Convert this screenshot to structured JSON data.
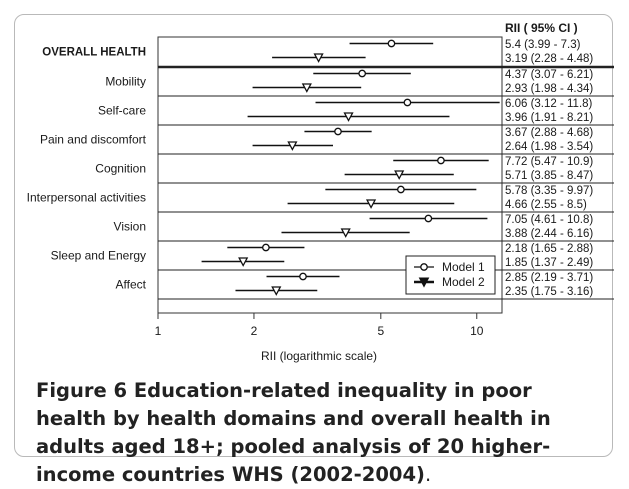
{
  "chart_data": {
    "type": "forest",
    "title": "",
    "xlabel": "RII (logarithmic scale)",
    "ylabel": "",
    "x_scale": "log",
    "xlim": [
      1,
      12
    ],
    "xticks": [
      1,
      2,
      5,
      10
    ],
    "xtick_labels": [
      "1",
      "2",
      "5",
      "10"
    ],
    "ci_header": "RII  ( 95% CI )",
    "legend": {
      "placement": "bottom-right",
      "entries": [
        "Model 1",
        "Model 2"
      ]
    },
    "categories": [
      "OVERALL HEALTH",
      "Mobility",
      "Self-care",
      "Pain and discomfort",
      "Cognition",
      "Interpersonal activities",
      "Vision",
      "Sleep and Energy",
      "Affect"
    ],
    "series": [
      {
        "name": "Model 1",
        "marker": "circle",
        "points": [
          {
            "category": "OVERALL HEALTH",
            "rii": 5.4,
            "low": 3.99,
            "high": 7.3,
            "label": "5.4 (3.99 -  7.3)"
          },
          {
            "category": "Mobility",
            "rii": 4.37,
            "low": 3.07,
            "high": 6.21,
            "label": "4.37 (3.07 -  6.21)"
          },
          {
            "category": "Self-care",
            "rii": 6.06,
            "low": 3.12,
            "high": 11.8,
            "label": "6.06 (3.12 -  11.8)"
          },
          {
            "category": "Pain and discomfort",
            "rii": 3.67,
            "low": 2.88,
            "high": 4.68,
            "label": "3.67 (2.88 -  4.68)"
          },
          {
            "category": "Cognition",
            "rii": 7.72,
            "low": 5.47,
            "high": 10.9,
            "label": "7.72 (5.47 -  10.9)"
          },
          {
            "category": "Interpersonal activities",
            "rii": 5.78,
            "low": 3.35,
            "high": 9.97,
            "label": "5.78 (3.35 -  9.97)"
          },
          {
            "category": "Vision",
            "rii": 7.05,
            "low": 4.61,
            "high": 10.8,
            "label": "7.05 (4.61 -  10.8)"
          },
          {
            "category": "Sleep and Energy",
            "rii": 2.18,
            "low": 1.65,
            "high": 2.88,
            "label": "2.18 (1.65 -  2.88)"
          },
          {
            "category": "Affect",
            "rii": 2.85,
            "low": 2.19,
            "high": 3.71,
            "label": "2.85 (2.19 -  3.71)"
          }
        ]
      },
      {
        "name": "Model 2",
        "marker": "triangle-down",
        "points": [
          {
            "category": "OVERALL HEALTH",
            "rii": 3.19,
            "low": 2.28,
            "high": 4.48,
            "label": "3.19 (2.28 -  4.48)"
          },
          {
            "category": "Mobility",
            "rii": 2.93,
            "low": 1.98,
            "high": 4.34,
            "label": "2.93 (1.98 -  4.34)"
          },
          {
            "category": "Self-care",
            "rii": 3.96,
            "low": 1.91,
            "high": 8.21,
            "label": "3.96 (1.91 -  8.21)"
          },
          {
            "category": "Pain and discomfort",
            "rii": 2.64,
            "low": 1.98,
            "high": 3.54,
            "label": "2.64 (1.98 -  3.54)"
          },
          {
            "category": "Cognition",
            "rii": 5.71,
            "low": 3.85,
            "high": 8.47,
            "label": "5.71 (3.85 -  8.47)"
          },
          {
            "category": "Interpersonal activities",
            "rii": 4.66,
            "low": 2.55,
            "high": 8.5,
            "label": "4.66 (2.55 -  8.5)"
          },
          {
            "category": "Vision",
            "rii": 3.88,
            "low": 2.44,
            "high": 6.16,
            "label": "3.88 (2.44 -  6.16)"
          },
          {
            "category": "Sleep and Energy",
            "rii": 1.85,
            "low": 1.37,
            "high": 2.49,
            "label": "1.85 (1.37 -  2.49)"
          },
          {
            "category": "Affect",
            "rii": 2.35,
            "low": 1.75,
            "high": 3.16,
            "label": "2.35 (1.75 -  3.16)"
          }
        ]
      }
    ]
  },
  "caption": {
    "label": "Figure 6",
    "text": " Education-related inequality in poor health by health domains and overall health in adults aged 18+; pooled analysis of 20 higher-income countries WHS (2002-2004)",
    "end": "."
  }
}
